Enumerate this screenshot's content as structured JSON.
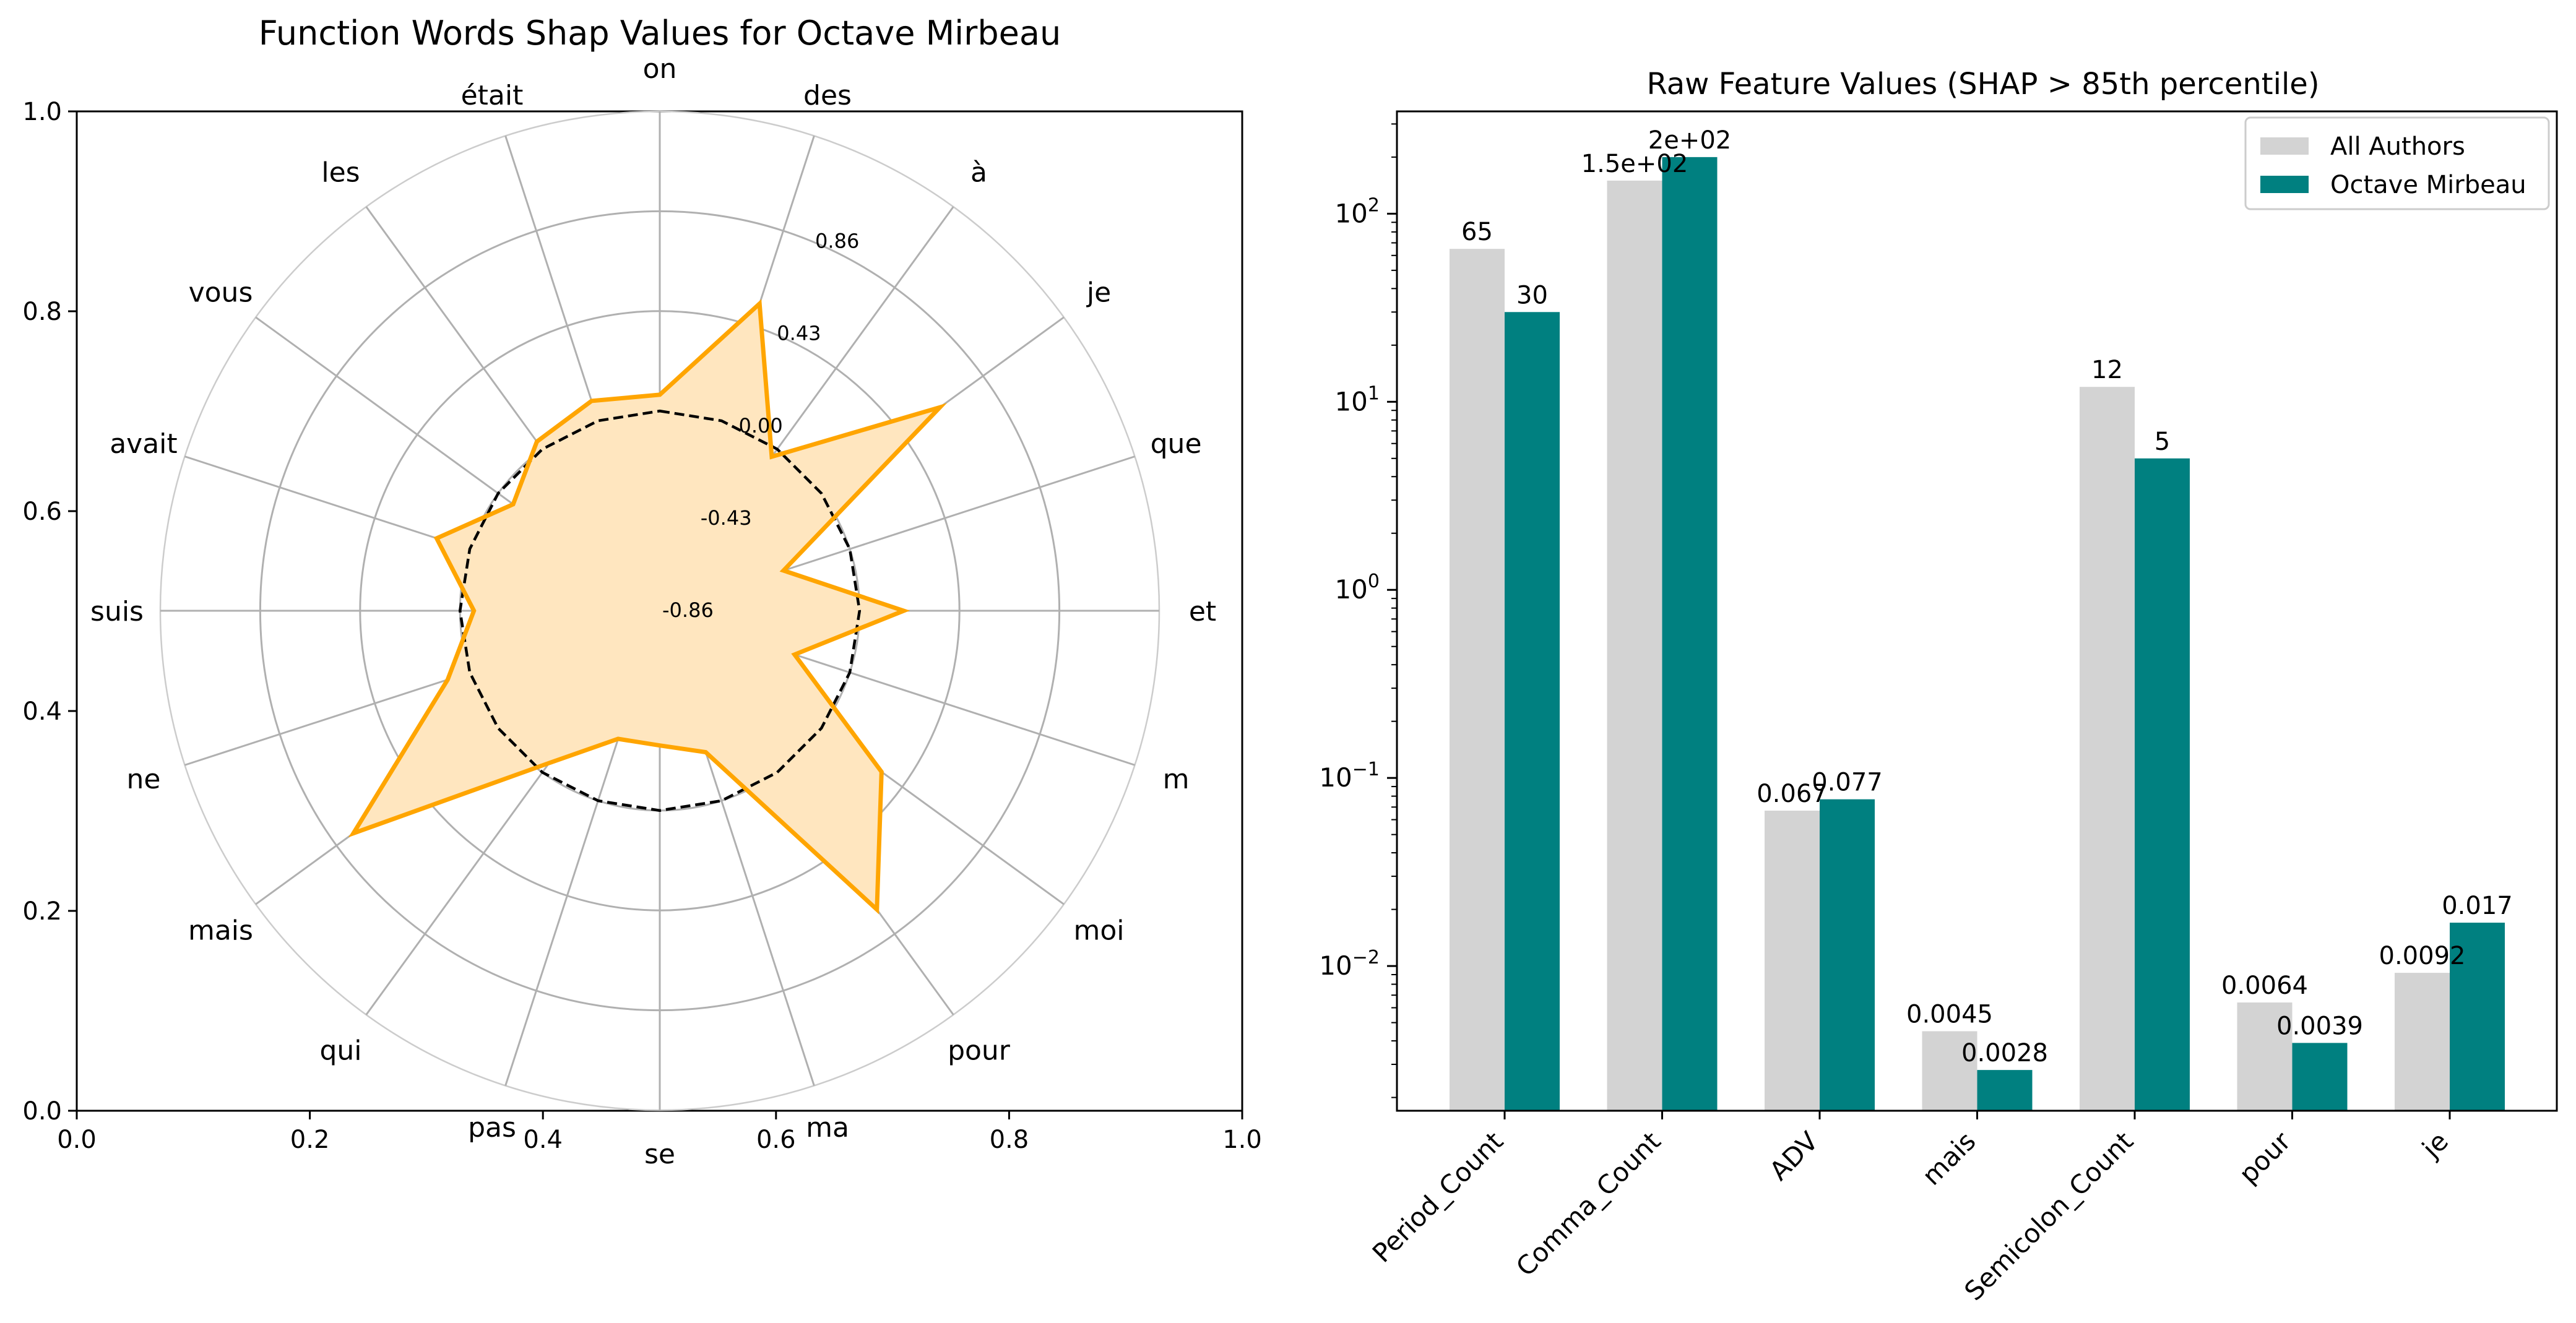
{
  "chart_data": [
    {
      "type": "radar",
      "title": "Function Words Shap Values for Octave Mirbeau",
      "categories": [
        "on",
        "des",
        "à",
        "je",
        "que",
        "et",
        "m",
        "moi",
        "pour",
        "ma",
        "se",
        "pas",
        "qui",
        "mais",
        "ne",
        "suis",
        "avait",
        "vous",
        "les",
        "était"
      ],
      "radial_ticks": [
        "-0.86",
        "-0.43",
        "0.00",
        "0.43",
        "0.86"
      ],
      "rlim": [
        -0.86,
        1.29
      ],
      "series": [
        {
          "values": [
            0.07,
            0.53,
            -0.04,
            0.63,
            -0.3,
            0.19,
            -0.25,
            0.32,
            0.73,
            -0.22,
            -0.28,
            -0.28,
            -0.05,
            0.77,
            0.1,
            -0.06,
            0.15,
            -0.08,
            0.04,
            0.09
          ],
          "color": "#ffa500",
          "fill": "#ffe6bf"
        },
        {
          "values": [
            0.0,
            0.0,
            0.0,
            0.0,
            0.0,
            0.0,
            0.0,
            0.0,
            0.0,
            0.0,
            0.0,
            0.0,
            0.0,
            0.0,
            0.0,
            0.0,
            0.0,
            0.0,
            0.0,
            0.0
          ],
          "style": "dashed",
          "color": "#000000"
        }
      ],
      "frame_ticks": {
        "x": [
          "0.0",
          "0.2",
          "0.4",
          "0.6",
          "0.8",
          "1.0"
        ],
        "y": [
          "0.0",
          "0.2",
          "0.4",
          "0.6",
          "0.8",
          "1.0"
        ]
      }
    },
    {
      "type": "bar",
      "title": "Raw Feature Values (SHAP > 85th percentile)",
      "categories": [
        "Period_Count",
        "Comma_Count",
        "ADV",
        "mais",
        "Semicolon_Count",
        "pour",
        "je"
      ],
      "y_scale": "log",
      "ylim": [
        0.0017,
        350
      ],
      "y_ticks": [
        {
          "value": 0.01,
          "base": "10",
          "exp": "−2"
        },
        {
          "value": 0.1,
          "base": "10",
          "exp": "−1"
        },
        {
          "value": 1,
          "base": "10",
          "exp": "0"
        },
        {
          "value": 10,
          "base": "10",
          "exp": "1"
        },
        {
          "value": 100,
          "base": "10",
          "exp": "2"
        }
      ],
      "series": [
        {
          "name": "All Authors",
          "color": "#d3d3d3",
          "values": [
            65,
            150,
            0.067,
            0.0045,
            12,
            0.0064,
            0.0092
          ],
          "labels": [
            "65",
            "1.5e+02",
            "0.067",
            "0.0045",
            "12",
            "0.0064",
            "0.0092"
          ]
        },
        {
          "name": "Octave Mirbeau",
          "color": "#008080",
          "values": [
            30,
            200,
            0.077,
            0.0028,
            5,
            0.0039,
            0.017
          ],
          "labels": [
            "30",
            "2e+02",
            "0.077",
            "0.0028",
            "5",
            "0.0039",
            "0.017"
          ]
        }
      ],
      "legend_position": "top-right"
    }
  ]
}
